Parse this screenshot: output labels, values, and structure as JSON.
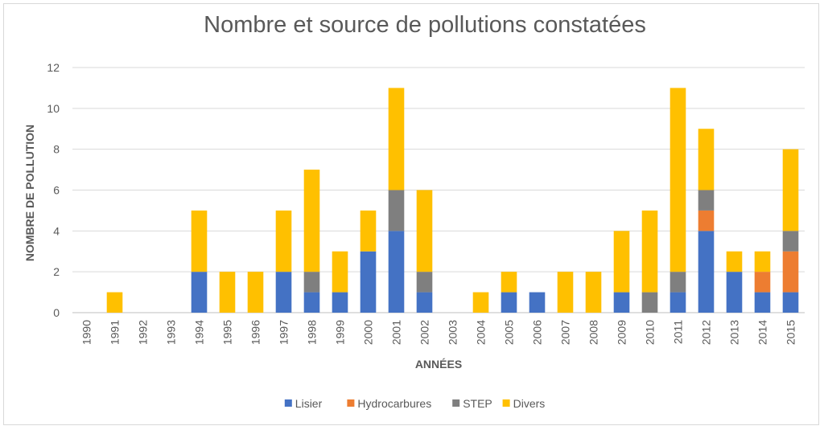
{
  "chart_data": {
    "type": "bar",
    "stacked": true,
    "title": "Nombre et source de pollutions constatées",
    "xlabel": "ANNÉES",
    "ylabel": "NOMBRE DE POLLUTION",
    "ylim": [
      0,
      12
    ],
    "yticks": [
      0,
      2,
      4,
      6,
      8,
      10,
      12
    ],
    "grid": true,
    "legend_position": "bottom",
    "categories": [
      "1990",
      "1991",
      "1992",
      "1993",
      "1994",
      "1995",
      "1996",
      "1997",
      "1998",
      "1999",
      "2000",
      "2001",
      "2002",
      "2003",
      "2004",
      "2005",
      "2006",
      "2007",
      "2008",
      "2009",
      "2010",
      "2011",
      "2012",
      "2013",
      "2014",
      "2015"
    ],
    "series": [
      {
        "name": "Lisier",
        "color": "#4472c4",
        "values": [
          0,
          0,
          0,
          0,
          2,
          0,
          0,
          2,
          1,
          1,
          3,
          4,
          1,
          0,
          0,
          1,
          1,
          0,
          0,
          1,
          0,
          1,
          4,
          2,
          1,
          1
        ]
      },
      {
        "name": "Hydrocarbures",
        "color": "#ed7d31",
        "values": [
          0,
          0,
          0,
          0,
          0,
          0,
          0,
          0,
          0,
          0,
          0,
          0,
          0,
          0,
          0,
          0,
          0,
          0,
          0,
          0,
          0,
          0,
          1,
          0,
          1,
          2
        ]
      },
      {
        "name": "STEP",
        "color": "#7f7f7f",
        "values": [
          0,
          0,
          0,
          0,
          0,
          0,
          0,
          0,
          1,
          0,
          0,
          2,
          1,
          0,
          0,
          0,
          0,
          0,
          0,
          0,
          1,
          1,
          1,
          0,
          0,
          1
        ]
      },
      {
        "name": "Divers",
        "color": "#ffc000",
        "values": [
          0,
          1,
          0,
          0,
          3,
          2,
          2,
          3,
          5,
          2,
          2,
          5,
          4,
          0,
          1,
          1,
          0,
          2,
          2,
          3,
          4,
          9,
          3,
          1,
          1,
          4
        ]
      }
    ]
  }
}
